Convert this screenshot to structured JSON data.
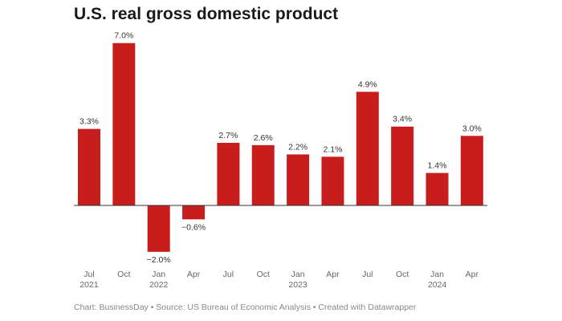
{
  "chart_data": {
    "type": "bar",
    "title": "U.S. real gross domestic product",
    "categories": [
      "Jul 2021",
      "Oct",
      "Jan 2022",
      "Apr",
      "Jul",
      "Oct",
      "Jan 2023",
      "Apr",
      "Jul",
      "Oct",
      "Jan 2024",
      "Apr"
    ],
    "tick_labels": [
      [
        "Jul",
        "2021"
      ],
      [
        "Oct",
        ""
      ],
      [
        "Jan",
        "2022"
      ],
      [
        "Apr",
        ""
      ],
      [
        "Jul",
        ""
      ],
      [
        "Oct",
        ""
      ],
      [
        "Jan",
        "2023"
      ],
      [
        "Apr",
        ""
      ],
      [
        "Jul",
        ""
      ],
      [
        "Oct",
        ""
      ],
      [
        "Jan",
        "2024"
      ],
      [
        "Apr",
        ""
      ]
    ],
    "values": [
      3.3,
      7.0,
      -2.0,
      -0.6,
      2.7,
      2.6,
      2.2,
      2.1,
      4.9,
      3.4,
      1.4,
      3.0
    ],
    "data_labels": [
      "3.3%",
      "7.0%",
      "−2.0%",
      "−0.6%",
      "2.7%",
      "2.6%",
      "2.2%",
      "2.1%",
      "4.9%",
      "3.4%",
      "1.4%",
      "3.0%"
    ],
    "unit": "%",
    "grid": false,
    "bar_color": "#c71e1d",
    "footer": "Chart: BusinessDay • Source: US Bureau of Economic Analysis • Created with Datawrapper"
  }
}
